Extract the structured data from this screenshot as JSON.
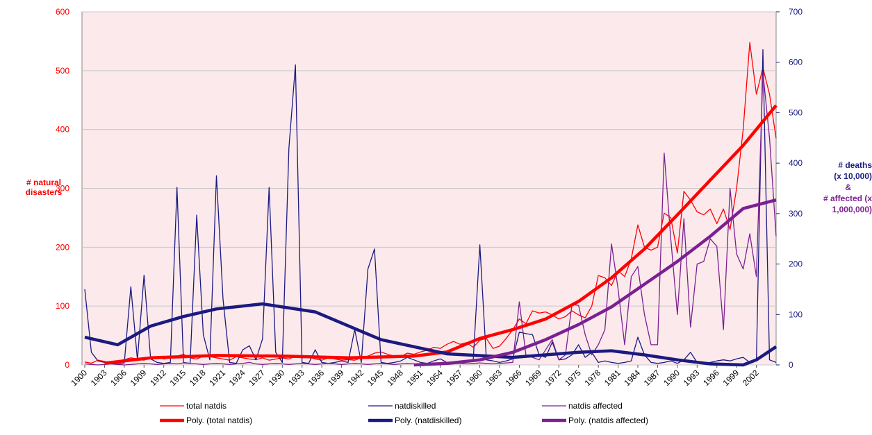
{
  "chart_data": {
    "type": "line",
    "y_label": "# natural disasters",
    "y2_label": "# deaths (x 10,000)",
    "y2_label_2": "&",
    "y2_label_3": "# affected (x 1,000,000)",
    "x": [
      1900,
      1901,
      1902,
      1903,
      1904,
      1905,
      1906,
      1907,
      1908,
      1909,
      1910,
      1911,
      1912,
      1913,
      1914,
      1915,
      1916,
      1917,
      1918,
      1919,
      1920,
      1921,
      1922,
      1923,
      1924,
      1925,
      1926,
      1927,
      1928,
      1929,
      1930,
      1931,
      1932,
      1933,
      1934,
      1935,
      1936,
      1937,
      1938,
      1939,
      1940,
      1941,
      1942,
      1943,
      1944,
      1945,
      1946,
      1947,
      1948,
      1949,
      1950,
      1951,
      1952,
      1953,
      1954,
      1955,
      1956,
      1957,
      1958,
      1959,
      1960,
      1961,
      1962,
      1963,
      1964,
      1965,
      1966,
      1967,
      1968,
      1969,
      1970,
      1971,
      1972,
      1973,
      1974,
      1975,
      1976,
      1977,
      1978,
      1979,
      1980,
      1981,
      1982,
      1983,
      1984,
      1985,
      1986,
      1987,
      1988,
      1989,
      1990,
      1991,
      1992,
      1993,
      1994,
      1995,
      1996,
      1997,
      1998,
      1999,
      2000,
      2001,
      2002,
      2003,
      2004,
      2005
    ],
    "xlim": [
      1900,
      2005
    ],
    "xticks": [
      1900,
      1903,
      1906,
      1909,
      1912,
      1915,
      1918,
      1921,
      1924,
      1927,
      1930,
      1933,
      1936,
      1939,
      1942,
      1945,
      1948,
      1951,
      1954,
      1957,
      1960,
      1963,
      1966,
      1969,
      1972,
      1975,
      1978,
      1981,
      1984,
      1987,
      1990,
      1993,
      1996,
      1999,
      2002
    ],
    "ylim": [
      0,
      600
    ],
    "yticks": [
      0,
      100,
      200,
      300,
      400,
      500,
      600
    ],
    "y2lim": [
      0,
      700
    ],
    "y2ticks": [
      0,
      100,
      200,
      300,
      400,
      500,
      600,
      700
    ],
    "grid": true,
    "series": [
      {
        "name": "total natdis",
        "color": "#ff0000",
        "width": 1.3,
        "values": [
          5,
          3,
          8,
          6,
          4,
          7,
          9,
          12,
          10,
          8,
          12,
          14,
          10,
          12,
          15,
          18,
          12,
          10,
          15,
          14,
          12,
          10,
          8,
          14,
          12,
          10,
          9,
          12,
          8,
          10,
          12,
          10,
          15,
          12,
          14,
          10,
          8,
          12,
          10,
          8,
          9,
          8,
          12,
          15,
          20,
          22,
          18,
          15,
          14,
          20,
          18,
          22,
          25,
          30,
          28,
          35,
          40,
          35,
          38,
          30,
          42,
          45,
          28,
          32,
          45,
          60,
          78,
          70,
          92,
          88,
          90,
          85,
          78,
          82,
          92,
          85,
          80,
          100,
          152,
          148,
          135,
          160,
          150,
          180,
          238,
          200,
          195,
          200,
          258,
          250,
          190,
          295,
          280,
          260,
          255,
          265,
          240,
          265,
          230,
          300,
          400,
          548,
          460,
          505,
          460,
          385
        ]
      },
      {
        "name": "natdiskilled",
        "color": "#1a1a80",
        "width": 1.3,
        "axis": "y2",
        "values": [
          150,
          25,
          8,
          5,
          3,
          2,
          4,
          155,
          10,
          178,
          12,
          5,
          3,
          5,
          352,
          5,
          3,
          297,
          60,
          10,
          375,
          130,
          5,
          3,
          30,
          38,
          10,
          52,
          352,
          25,
          5,
          430,
          595,
          5,
          3,
          30,
          5,
          3,
          5,
          8,
          5,
          70,
          5,
          190,
          230,
          5,
          3,
          5,
          8,
          15,
          10,
          5,
          3,
          8,
          12,
          5,
          3,
          5,
          8,
          10,
          238,
          10,
          8,
          5,
          8,
          12,
          65,
          62,
          60,
          20,
          15,
          45,
          10,
          12,
          20,
          40,
          15,
          25,
          5,
          8,
          5,
          3,
          5,
          8,
          55,
          20,
          5,
          3,
          5,
          8,
          3,
          10,
          25,
          5,
          3,
          5,
          8,
          10,
          8,
          12,
          15,
          5,
          8,
          625,
          10,
          5
        ]
      },
      {
        "name": "natdis affected",
        "color": "#7b2090",
        "width": 1.3,
        "axis": "y2",
        "values": [
          2,
          1,
          0,
          1,
          2,
          1,
          0,
          1,
          2,
          3,
          2,
          1,
          2,
          3,
          2,
          4,
          3,
          2,
          1,
          2,
          3,
          2,
          1,
          2,
          3,
          5,
          2,
          1,
          2,
          3,
          2,
          1,
          2,
          3,
          2,
          1,
          2,
          3,
          2,
          1,
          2,
          3,
          2,
          1,
          2,
          3,
          2,
          1,
          2,
          3,
          2,
          1,
          2,
          3,
          2,
          1,
          2,
          3,
          2,
          3,
          4,
          3,
          2,
          3,
          4,
          5,
          125,
          20,
          15,
          10,
          30,
          50,
          10,
          20,
          120,
          118,
          60,
          20,
          40,
          70,
          240,
          150,
          40,
          175,
          195,
          100,
          40,
          40,
          420,
          250,
          100,
          290,
          75,
          200,
          205,
          250,
          235,
          70,
          350,
          220,
          190,
          260,
          175,
          580,
          450,
          255
        ]
      },
      {
        "name": "Poly. (total natdis)",
        "color": "#ff0000",
        "width": 4.5,
        "x": [
          1903,
          1910,
          1920,
          1930,
          1940,
          1950,
          1955,
          1960,
          1965,
          1970,
          1975,
          1980,
          1985,
          1990,
          1995,
          2000,
          2005
        ],
        "values": [
          3,
          12,
          16,
          15,
          12,
          15,
          22,
          45,
          60,
          78,
          108,
          148,
          197,
          255,
          314,
          373,
          441
        ]
      },
      {
        "name": "Poly. (natdiskilled)",
        "color": "#1a1a80",
        "width": 4.5,
        "axis": "y2",
        "x": [
          1900,
          1905,
          1910,
          1915,
          1920,
          1927,
          1935,
          1945,
          1955,
          1965,
          1975,
          1980,
          1985,
          1990,
          1995,
          2000,
          2002,
          2005
        ],
        "values": [
          55,
          40,
          77,
          96,
          111,
          121,
          105,
          50,
          22,
          15,
          25,
          28,
          20,
          10,
          2,
          0,
          10,
          36
        ]
      },
      {
        "name": "Poly. (natdis affected)",
        "color": "#7b2090",
        "width": 4.5,
        "axis": "y2",
        "x": [
          1950,
          1955,
          1960,
          1965,
          1970,
          1975,
          1980,
          1985,
          1990,
          1995,
          2000,
          2005
        ],
        "values": [
          0,
          3,
          10,
          25,
          50,
          80,
          115,
          160,
          205,
          255,
          310,
          327
        ]
      }
    ]
  }
}
